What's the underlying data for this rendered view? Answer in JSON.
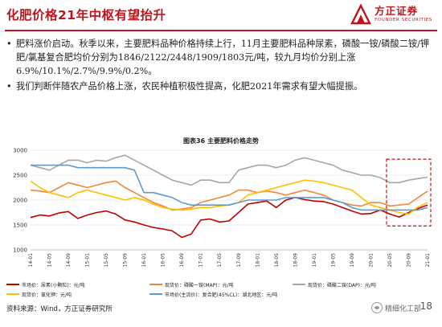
{
  "page": {
    "title": "化肥价格21年中枢有望抬升",
    "page_number": "18",
    "source": "资料来源：Wind，方正证券研究所",
    "watermark": "精细化工部"
  },
  "brand": {
    "name_cn": "方正证券",
    "name_en": "FOUNDER SECURITIES",
    "color": "#c0141c"
  },
  "bullets": [
    "肥料涨价启动。秋季以来，主要肥料品种价格持续上行，11月主要肥料品种尿素，磷酸一铵/磷酸二铵/钾肥/氯基复合肥均价分别为1846/2122/2448/1909/1803元/吨，较九月均价分别上涨6.9%/10.1%/2.7%/9.9%/0.2%。",
    "我们判断伴随农产品价格上涨，农民种植积极性提高，化肥2021年需求有望大幅提振。"
  ],
  "figure_title": "图表36 主要肥料价格走势",
  "chart_data": {
    "type": "line",
    "ylim": [
      1000,
      3000
    ],
    "yticks": [
      1000,
      1500,
      2000,
      2500,
      3000
    ],
    "xticks": [
      "14-01",
      "14-05",
      "14-09",
      "15-01",
      "15-05",
      "15-09",
      "16-01",
      "16-05",
      "16-09",
      "17-01",
      "17-05",
      "17-09",
      "18-01",
      "18-05",
      "18-09",
      "19-01",
      "19-05",
      "19-09",
      "20-01",
      "20-05",
      "20-09",
      "21-01"
    ],
    "grid": "horizontal",
    "legend_position": "bottom",
    "highlight_box": {
      "x_start": "20-05",
      "x_end": "21-01",
      "y_min": 1480,
      "y_max": 2820,
      "color": "#c0141c"
    },
    "series": [
      {
        "name": "市场价：尿素(小颗粒)：元/吨",
        "color": "#c00000",
        "points": [
          [
            "14-01",
            1650
          ],
          [
            "14-03",
            1700
          ],
          [
            "14-05",
            1680
          ],
          [
            "14-07",
            1740
          ],
          [
            "14-09",
            1770
          ],
          [
            "14-11",
            1630
          ],
          [
            "15-01",
            1700
          ],
          [
            "15-03",
            1750
          ],
          [
            "15-05",
            1780
          ],
          [
            "15-07",
            1720
          ],
          [
            "15-09",
            1600
          ],
          [
            "15-11",
            1560
          ],
          [
            "16-01",
            1500
          ],
          [
            "16-03",
            1450
          ],
          [
            "16-05",
            1420
          ],
          [
            "16-07",
            1380
          ],
          [
            "16-09",
            1250
          ],
          [
            "16-11",
            1320
          ],
          [
            "17-01",
            1600
          ],
          [
            "17-03",
            1620
          ],
          [
            "17-05",
            1560
          ],
          [
            "17-07",
            1580
          ],
          [
            "17-09",
            1750
          ],
          [
            "17-11",
            1920
          ],
          [
            "18-01",
            1950
          ],
          [
            "18-03",
            1980
          ],
          [
            "18-05",
            1850
          ],
          [
            "18-07",
            2000
          ],
          [
            "18-09",
            2050
          ],
          [
            "18-11",
            2010
          ],
          [
            "19-01",
            1980
          ],
          [
            "19-03",
            1970
          ],
          [
            "19-05",
            1920
          ],
          [
            "19-07",
            1850
          ],
          [
            "19-09",
            1780
          ],
          [
            "19-11",
            1720
          ],
          [
            "20-01",
            1730
          ],
          [
            "20-03",
            1800
          ],
          [
            "20-05",
            1720
          ],
          [
            "20-07",
            1660
          ],
          [
            "20-09",
            1750
          ],
          [
            "20-11",
            1830
          ],
          [
            "21-01",
            1900
          ]
        ]
      },
      {
        "name": "现货价：磷酸一铵(MAP)：元/吨",
        "color": "#f0883a",
        "points": [
          [
            "14-01",
            2200
          ],
          [
            "14-03",
            2180
          ],
          [
            "14-05",
            2150
          ],
          [
            "14-07",
            2250
          ],
          [
            "14-09",
            2350
          ],
          [
            "14-11",
            2300
          ],
          [
            "15-01",
            2250
          ],
          [
            "15-03",
            2300
          ],
          [
            "15-05",
            2350
          ],
          [
            "15-07",
            2380
          ],
          [
            "15-09",
            2250
          ],
          [
            "15-11",
            2150
          ],
          [
            "16-01",
            2050
          ],
          [
            "16-03",
            1950
          ],
          [
            "16-05",
            1880
          ],
          [
            "16-07",
            1800
          ],
          [
            "16-09",
            1820
          ],
          [
            "16-11",
            1850
          ],
          [
            "17-01",
            1950
          ],
          [
            "17-03",
            2000
          ],
          [
            "17-05",
            2050
          ],
          [
            "17-07",
            2100
          ],
          [
            "17-09",
            2200
          ],
          [
            "17-11",
            2200
          ],
          [
            "18-01",
            2150
          ],
          [
            "18-03",
            2180
          ],
          [
            "18-05",
            2150
          ],
          [
            "18-07",
            2100
          ],
          [
            "18-09",
            2150
          ],
          [
            "18-11",
            2200
          ],
          [
            "19-01",
            2150
          ],
          [
            "19-03",
            2100
          ],
          [
            "19-05",
            2000
          ],
          [
            "19-07",
            1950
          ],
          [
            "19-09",
            1900
          ],
          [
            "19-11",
            1880
          ],
          [
            "20-01",
            1950
          ],
          [
            "20-03",
            1950
          ],
          [
            "20-05",
            1880
          ],
          [
            "20-07",
            1900
          ],
          [
            "20-09",
            1920
          ],
          [
            "20-11",
            2050
          ],
          [
            "21-01",
            2180
          ]
        ]
      },
      {
        "name": "现货价：磷酸二铵(DAP)：元/吨",
        "color": "#a6a6a6",
        "points": [
          [
            "14-01",
            2700
          ],
          [
            "14-03",
            2650
          ],
          [
            "14-05",
            2600
          ],
          [
            "14-07",
            2700
          ],
          [
            "14-09",
            2800
          ],
          [
            "14-11",
            2800
          ],
          [
            "15-01",
            2750
          ],
          [
            "15-03",
            2800
          ],
          [
            "15-05",
            2780
          ],
          [
            "15-07",
            2850
          ],
          [
            "15-09",
            2900
          ],
          [
            "15-11",
            2800
          ],
          [
            "16-01",
            2700
          ],
          [
            "16-03",
            2600
          ],
          [
            "16-05",
            2500
          ],
          [
            "16-07",
            2400
          ],
          [
            "16-09",
            2350
          ],
          [
            "16-11",
            2300
          ],
          [
            "17-01",
            2400
          ],
          [
            "17-03",
            2400
          ],
          [
            "17-05",
            2350
          ],
          [
            "17-07",
            2350
          ],
          [
            "17-09",
            2600
          ],
          [
            "17-11",
            2650
          ],
          [
            "18-01",
            2700
          ],
          [
            "18-03",
            2700
          ],
          [
            "18-05",
            2650
          ],
          [
            "18-07",
            2700
          ],
          [
            "18-09",
            2800
          ],
          [
            "18-11",
            2850
          ],
          [
            "19-01",
            2800
          ],
          [
            "19-03",
            2750
          ],
          [
            "19-05",
            2700
          ],
          [
            "19-07",
            2600
          ],
          [
            "19-09",
            2550
          ],
          [
            "19-11",
            2500
          ],
          [
            "20-01",
            2500
          ],
          [
            "20-03",
            2450
          ],
          [
            "20-05",
            2350
          ],
          [
            "20-07",
            2350
          ],
          [
            "20-09",
            2400
          ],
          [
            "20-11",
            2430
          ],
          [
            "21-01",
            2460
          ]
        ]
      },
      {
        "name": "现货价：氯化钾：元/吨",
        "color": "#ffc000",
        "points": [
          [
            "14-01",
            2380
          ],
          [
            "14-03",
            2250
          ],
          [
            "14-05",
            2150
          ],
          [
            "14-07",
            2100
          ],
          [
            "14-09",
            2050
          ],
          [
            "14-11",
            2150
          ],
          [
            "15-01",
            2200
          ],
          [
            "15-03",
            2150
          ],
          [
            "15-05",
            2100
          ],
          [
            "15-07",
            2050
          ],
          [
            "15-09",
            2000
          ],
          [
            "15-11",
            2050
          ],
          [
            "16-01",
            2000
          ],
          [
            "16-03",
            1920
          ],
          [
            "16-05",
            1850
          ],
          [
            "16-07",
            1820
          ],
          [
            "16-09",
            1800
          ],
          [
            "16-11",
            1820
          ],
          [
            "17-01",
            1850
          ],
          [
            "17-03",
            1850
          ],
          [
            "17-05",
            1880
          ],
          [
            "17-07",
            1900
          ],
          [
            "17-09",
            1950
          ],
          [
            "17-11",
            2100
          ],
          [
            "18-01",
            2150
          ],
          [
            "18-03",
            2200
          ],
          [
            "18-05",
            2250
          ],
          [
            "18-07",
            2300
          ],
          [
            "18-09",
            2350
          ],
          [
            "18-11",
            2400
          ],
          [
            "19-01",
            2380
          ],
          [
            "19-03",
            2350
          ],
          [
            "19-05",
            2300
          ],
          [
            "19-07",
            2250
          ],
          [
            "19-09",
            2200
          ],
          [
            "19-11",
            2050
          ],
          [
            "20-01",
            1900
          ],
          [
            "20-03",
            1850
          ],
          [
            "20-05",
            1800
          ],
          [
            "20-07",
            1750
          ],
          [
            "20-09",
            1720
          ],
          [
            "20-11",
            1860
          ],
          [
            "21-01",
            1950
          ]
        ]
      },
      {
        "name": "市场价(主流价)：复合肥(45%CL)：湖北地区：元/吨",
        "color": "#5b9bd5",
        "points": [
          [
            "14-01",
            2700
          ],
          [
            "14-03",
            2700
          ],
          [
            "14-05",
            2700
          ],
          [
            "14-07",
            2700
          ],
          [
            "14-09",
            2700
          ],
          [
            "14-11",
            2650
          ],
          [
            "15-01",
            2650
          ],
          [
            "15-03",
            2650
          ],
          [
            "15-05",
            2650
          ],
          [
            "15-07",
            2650
          ],
          [
            "15-09",
            2650
          ],
          [
            "15-11",
            2600
          ],
          [
            "16-01",
            2150
          ],
          [
            "16-03",
            2150
          ],
          [
            "16-05",
            2100
          ],
          [
            "16-07",
            2050
          ],
          [
            "16-09",
            1950
          ],
          [
            "16-11",
            1900
          ],
          [
            "17-01",
            1900
          ],
          [
            "17-03",
            1900
          ],
          [
            "17-05",
            1900
          ],
          [
            "17-07",
            1900
          ],
          [
            "17-09",
            1950
          ],
          [
            "17-11",
            2000
          ],
          [
            "18-01",
            2000
          ],
          [
            "18-03",
            2000
          ],
          [
            "18-05",
            2000
          ],
          [
            "18-07",
            2050
          ],
          [
            "18-09",
            2050
          ],
          [
            "18-11",
            2050
          ],
          [
            "19-01",
            2050
          ],
          [
            "19-03",
            2050
          ],
          [
            "19-05",
            2000
          ],
          [
            "19-07",
            1950
          ],
          [
            "19-09",
            1850
          ],
          [
            "19-11",
            1800
          ],
          [
            "20-01",
            1800
          ],
          [
            "20-03",
            1800
          ],
          [
            "20-05",
            1800
          ],
          [
            "20-07",
            1800
          ],
          [
            "20-09",
            1800
          ],
          [
            "20-11",
            1800
          ],
          [
            "21-01",
            1850
          ]
        ]
      }
    ]
  }
}
